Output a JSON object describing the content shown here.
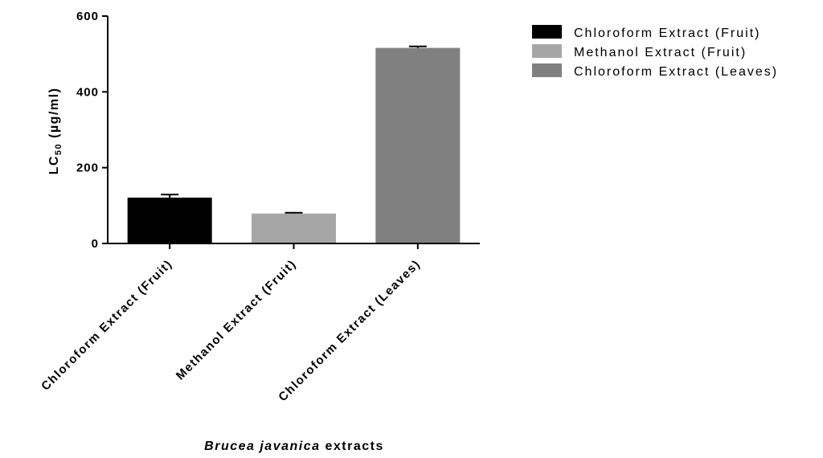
{
  "chart_data": {
    "type": "bar",
    "categories": [
      "Chloroform Extract (Fruit)",
      "Methanol Extract (Fruit)",
      "Chloroform Extract (Leaves)"
    ],
    "values": [
      121,
      79,
      516
    ],
    "errors": [
      8,
      2,
      4
    ],
    "colors": [
      "#000000",
      "#a6a6a6",
      "#808080"
    ],
    "ylabel_main": "LC",
    "ylabel_sub": "50",
    "ylabel_unit": " (µg/ml)",
    "xlabel_italic": "Brucea javanica",
    "xlabel_rest": " extracts",
    "ylim": [
      0,
      600
    ],
    "yticks": [
      "0",
      "200",
      "400",
      "600"
    ],
    "legend": {
      "position": "top-right",
      "entries": [
        "Chloroform Extract (Fruit)",
        "Methanol Extract (Fruit)",
        "Chloroform Extract (Leaves)"
      ]
    }
  }
}
